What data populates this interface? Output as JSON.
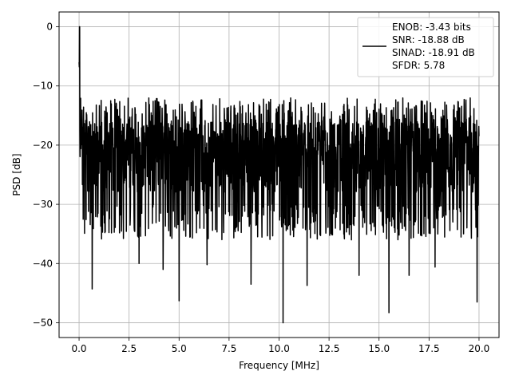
{
  "chart_data": {
    "type": "line",
    "title": "",
    "xlabel": "Frequency [MHz]",
    "ylabel": "PSD [dB]",
    "xlim": [
      -1.0,
      21.0
    ],
    "ylim": [
      -52.5,
      2.5
    ],
    "xticks": [
      0.0,
      2.5,
      5.0,
      7.5,
      10.0,
      12.5,
      15.0,
      17.5,
      20.0
    ],
    "xtick_labels": [
      "0.0",
      "2.5",
      "5.0",
      "7.5",
      "10.0",
      "12.5",
      "15.0",
      "17.5",
      "20.0"
    ],
    "yticks": [
      0,
      -10,
      -20,
      -30,
      -40,
      -50
    ],
    "ytick_labels": [
      "0",
      "−10",
      "−20",
      "−30",
      "−40",
      "−50"
    ],
    "grid": true,
    "legend": {
      "placement": "top-right",
      "lines": [
        "ENOB: -3.43 bits",
        "SNR: -18.88 dB",
        "SINAD: -18.91 dB",
        "SFDR: 5.78"
      ]
    },
    "series": [
      {
        "color": "#000000",
        "x_range": [
          0.0,
          20.0
        ],
        "points": 2048,
        "peak": {
          "x": 0.02,
          "y": 0.0
        },
        "noise_floor": {
          "upper_envelope": -13,
          "mean": -22,
          "lower_envelope": -35
        },
        "deep_nulls": [
          {
            "x": 0.65,
            "y": -44.3
          },
          {
            "x": 3.0,
            "y": -40.0
          },
          {
            "x": 4.2,
            "y": -41.0
          },
          {
            "x": 5.0,
            "y": -46.3
          },
          {
            "x": 6.4,
            "y": -40.2
          },
          {
            "x": 8.6,
            "y": -43.5
          },
          {
            "x": 10.2,
            "y": -50.0
          },
          {
            "x": 11.4,
            "y": -43.7
          },
          {
            "x": 14.0,
            "y": -42.0
          },
          {
            "x": 15.5,
            "y": -48.3
          },
          {
            "x": 16.5,
            "y": -42.0
          },
          {
            "x": 17.8,
            "y": -40.6
          },
          {
            "x": 19.9,
            "y": -46.5
          }
        ]
      }
    ]
  }
}
